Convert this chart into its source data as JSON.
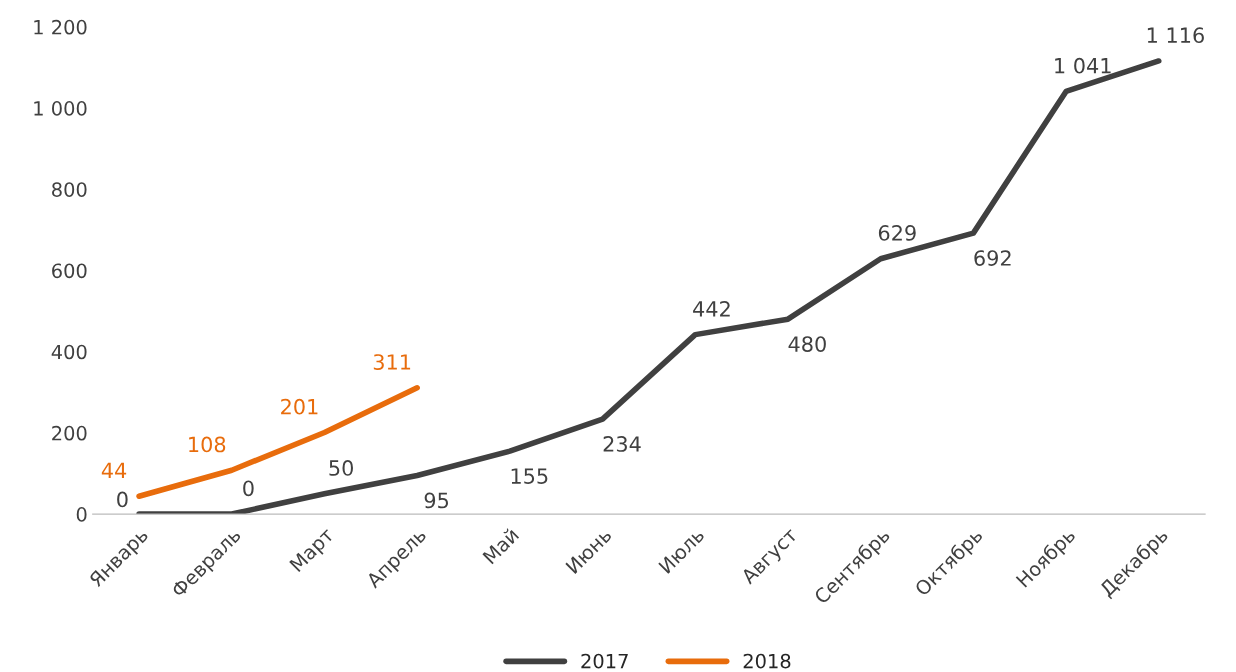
{
  "chart_data": {
    "type": "line",
    "categories": [
      "Январь",
      "Февраль",
      "Март",
      "Апрель",
      "Май",
      "Июнь",
      "Июль",
      "Август",
      "Сентябрь",
      "Октябрь",
      "Ноябрь",
      "Декабрь"
    ],
    "series": [
      {
        "name": "2017",
        "color": "#404040",
        "values": [
          0,
          0,
          50,
          95,
          155,
          234,
          442,
          480,
          629,
          692,
          1041,
          1116
        ],
        "value_labels": [
          "0",
          "0",
          "50",
          "95",
          "155",
          "234",
          "442",
          "480",
          "629",
          "692",
          "1 041",
          "1 116"
        ]
      },
      {
        "name": "2018",
        "color": "#e86c0c",
        "values": [
          44,
          108,
          201,
          311,
          null,
          null,
          null,
          null,
          null,
          null,
          null,
          null
        ],
        "value_labels": [
          "44",
          "108",
          "201",
          "311",
          null,
          null,
          null,
          null,
          null,
          null,
          null,
          null
        ]
      }
    ],
    "ylim": [
      0,
      1200
    ],
    "yticks": [
      0,
      200,
      400,
      600,
      800,
      {
        "value": 1000,
        "label": "1 000"
      },
      {
        "value": 1200,
        "label": "1 200"
      }
    ],
    "grid": false,
    "legend": "bottom",
    "marker": "none",
    "line_style": "solid"
  }
}
